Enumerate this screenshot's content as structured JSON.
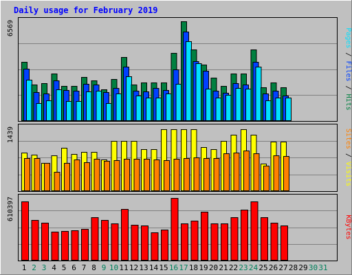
{
  "title": "Daily usage for February 2019",
  "colors": {
    "background": "#c0c0c0",
    "frame": "#000000",
    "hits": "#008040",
    "files": "#0040ff",
    "pages": "#00e0ff",
    "visits": "#ffff00",
    "sites": "#ff8000",
    "kbytes": "#ff0000",
    "weekday": "#000000",
    "weekend": "#00805c",
    "title": "#0000ff"
  },
  "chart_data": [
    {
      "type": "bar",
      "name": "hits-files-pages",
      "categories": [
        "1",
        "2",
        "3",
        "4",
        "5",
        "6",
        "7",
        "8",
        "9",
        "10",
        "11",
        "12",
        "13",
        "14",
        "15",
        "16",
        "17",
        "18",
        "19",
        "20",
        "21",
        "22",
        "23",
        "24",
        "25",
        "26",
        "27",
        "28",
        "29",
        "30",
        "31"
      ],
      "ymax": 6569,
      "ymax_label": "6569",
      "grid": true,
      "series": [
        {
          "name": "Hits",
          "values": [
            3875,
            2423,
            2513,
            3126,
            2333,
            2333,
            2897,
            2683,
            2086,
            2745,
            4222,
            2423,
            2543,
            2543,
            2533,
            4502,
            6569,
            4702,
            3697,
            2843,
            2303,
            3136,
            3126,
            4702,
            2223,
            2533,
            2213,
            null,
            null,
            null,
            null
          ]
        },
        {
          "name": "Files",
          "values": [
            3457,
            1919,
            1830,
            2653,
            2043,
            1994,
            2463,
            2413,
            1919,
            2154,
            3598,
            1984,
            1948,
            2183,
            2039,
            3407,
            5897,
            3952,
            3307,
            1984,
            1855,
            2503,
            2423,
            3917,
            1825,
            1998,
            1665,
            null,
            null,
            null,
            null
          ]
        },
        {
          "name": "Pages",
          "values": [
            2737,
            1187,
            1380,
            2103,
            1335,
            1321,
            1948,
            2009,
            1187,
            1790,
            2964,
            1688,
            1535,
            1554,
            1819,
            2454,
            5237,
            3792,
            2114,
            1526,
            1744,
            2153,
            2134,
            3597,
            1380,
            1554,
            1532,
            null,
            null,
            null,
            null
          ]
        }
      ]
    },
    {
      "type": "bar",
      "name": "visits-sites",
      "categories": [
        "1",
        "2",
        "3",
        "4",
        "5",
        "6",
        "7",
        "8",
        "9",
        "10",
        "11",
        "12",
        "13",
        "14",
        "15",
        "16",
        "17",
        "18",
        "19",
        "20",
        "21",
        "22",
        "23",
        "24",
        "25",
        "26",
        "27",
        "28",
        "29",
        "30",
        "31"
      ],
      "ymax": 1439,
      "ymax_label": "1439",
      "grid": true,
      "series": [
        {
          "name": "Visits",
          "values": [
            878,
            836,
            649,
            818,
            991,
            847,
            889,
            888,
            718,
            1140,
            1140,
            1140,
            953,
            953,
            1409,
            1409,
            1409,
            1409,
            1002,
            960,
            1140,
            1281,
            1402,
            1288,
            624,
            1124,
            1124,
            null,
            null,
            null,
            null
          ]
        },
        {
          "name": "Sites",
          "values": [
            744,
            756,
            645,
            432,
            647,
            714,
            655,
            732,
            692,
            700,
            740,
            740,
            740,
            723,
            707,
            738,
            758,
            771,
            750,
            758,
            865,
            874,
            929,
            868,
            577,
            814,
            803,
            null,
            null,
            null,
            null
          ]
        }
      ]
    },
    {
      "type": "bar",
      "name": "kbytes",
      "categories": [
        "1",
        "2",
        "3",
        "4",
        "5",
        "6",
        "7",
        "8",
        "9",
        "10",
        "11",
        "12",
        "13",
        "14",
        "15",
        "16",
        "17",
        "18",
        "19",
        "20",
        "21",
        "22",
        "23",
        "24",
        "25",
        "26",
        "27",
        "28",
        "29",
        "30",
        "31"
      ],
      "ymax": 610397,
      "ymax_label": "610397",
      "grid": true,
      "series": [
        {
          "name": "KBytes",
          "values": [
            578006,
            392716,
            365926,
            279219,
            286908,
            294300,
            311484,
            420000,
            394000,
            364000,
            504000,
            347000,
            343000,
            276000,
            302000,
            613000,
            359000,
            392000,
            478000,
            364000,
            364000,
            420000,
            497000,
            578000,
            420000,
            372000,
            343000,
            null,
            null,
            null,
            null
          ]
        }
      ]
    }
  ],
  "right_labels": [
    {
      "parts": [
        {
          "text": "Pages",
          "color": "#00e0ff"
        },
        {
          "text": " / ",
          "color": "#000000"
        },
        {
          "text": "Files",
          "color": "#0040ff"
        },
        {
          "text": " / ",
          "color": "#000000"
        },
        {
          "text": "Hits",
          "color": "#008040"
        }
      ]
    },
    {
      "parts": [
        {
          "text": "Sites",
          "color": "#ff8000"
        },
        {
          "text": " / ",
          "color": "#000000"
        },
        {
          "text": "Visits",
          "color": "#ffff00"
        }
      ]
    },
    {
      "parts": [
        {
          "text": "KBytes",
          "color": "#ff0000"
        }
      ]
    }
  ],
  "weekend_days": [
    "2",
    "3",
    "9",
    "10",
    "16",
    "17",
    "23",
    "24",
    "30",
    "31"
  ]
}
